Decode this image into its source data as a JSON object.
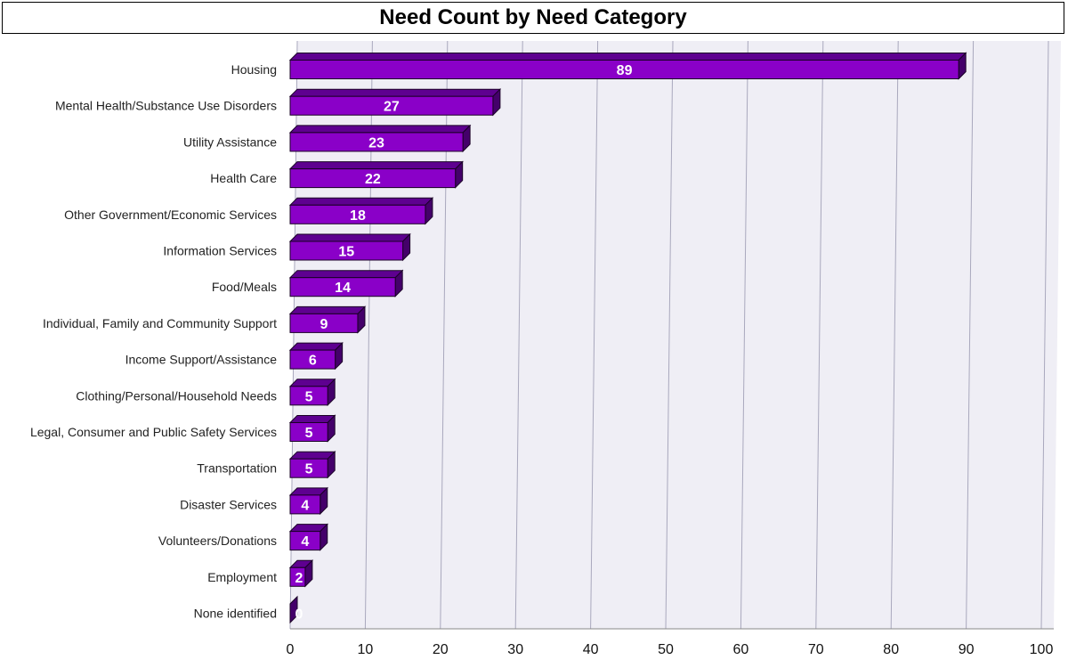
{
  "chart_data": {
    "type": "bar",
    "orientation": "horizontal",
    "title": "Need Count by Need Category",
    "categories": [
      "Housing",
      "Mental Health/Substance Use Disorders",
      "Utility Assistance",
      "Health Care",
      "Other Government/Economic Services",
      "Information Services",
      "Food/Meals",
      "Individual, Family and Community Support",
      "Income Support/Assistance",
      "Clothing/Personal/Household Needs",
      "Legal, Consumer and Public Safety Services",
      "Transportation",
      "Disaster Services",
      "Volunteers/Donations",
      "Employment",
      "None identified"
    ],
    "values": [
      89,
      27,
      23,
      22,
      18,
      15,
      14,
      9,
      6,
      5,
      5,
      5,
      4,
      4,
      2,
      0
    ],
    "xlim": [
      0,
      100
    ],
    "xticks": [
      0,
      10,
      20,
      30,
      40,
      50,
      60,
      70,
      80,
      90,
      100
    ],
    "grid": true,
    "data_labels": true,
    "colors": {
      "bar_front": "#8a00c8",
      "bar_top": "#5e0090",
      "bar_side": "#44006a",
      "plot_bg": "#efeef5",
      "grid": "#a9a8bd"
    }
  }
}
